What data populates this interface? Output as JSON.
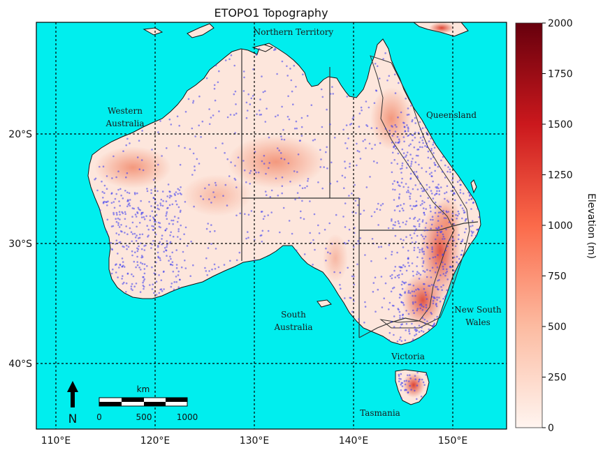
{
  "map": {
    "title": "ETOPO1 Topography",
    "ocean_color": "#00eeee",
    "land_color": "#fde6dc",
    "grid_lon_labels": [
      "110°E",
      "120°E",
      "130°E",
      "140°E",
      "150°E"
    ],
    "grid_lat_labels": [
      "20°S",
      "30°S",
      "40°S"
    ],
    "state_labels": [
      {
        "id": "northern-territory",
        "lines": [
          "Northern Territory"
        ]
      },
      {
        "id": "western-australia",
        "lines": [
          "Western",
          "Australia"
        ]
      },
      {
        "id": "queensland",
        "lines": [
          "Queensland"
        ]
      },
      {
        "id": "south-australia",
        "lines": [
          "South",
          "Australia"
        ]
      },
      {
        "id": "new-south-wales",
        "lines": [
          "New South",
          "Wales"
        ]
      },
      {
        "id": "victoria",
        "lines": [
          "Victoria"
        ]
      },
      {
        "id": "tasmania",
        "lines": [
          "Tasmania"
        ]
      }
    ],
    "north_arrow": "N",
    "scale_bar": {
      "unit": "km",
      "ticks": [
        "0",
        "500",
        "1000"
      ]
    }
  },
  "colorbar": {
    "label": "Elevation (m)",
    "ticks": [
      "0",
      "250",
      "500",
      "750",
      "1000",
      "1250",
      "1500",
      "1750",
      "2000"
    ],
    "min": 0,
    "max": 2000,
    "colors": {
      "low": "#fff5f0",
      "mid": "#fb6a4a",
      "high": "#67000d"
    }
  },
  "points": {
    "color": "#3b3bf0",
    "description": "station locations"
  }
}
